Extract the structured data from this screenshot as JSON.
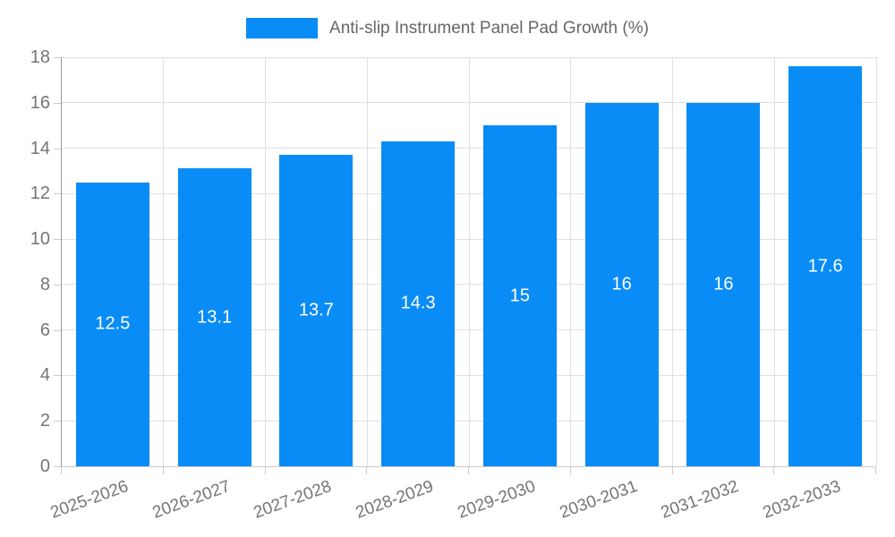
{
  "legend": {
    "label": "Anti-slip Instrument Panel Pad Growth (%)"
  },
  "colors": {
    "bar": "#0a8cf6",
    "grid": "#e0e0e0",
    "axis_y": "#999999",
    "axis_x": "#cccccc",
    "tick_label": "#757575",
    "legend_text": "#666666",
    "value_label": "#ffffff"
  },
  "chart_data": {
    "type": "bar",
    "title": "Anti-slip Instrument Panel Pad Growth (%)",
    "categories": [
      "2025-2026",
      "2026-2027",
      "2027-2028",
      "2028-2029",
      "2029-2030",
      "2030-2031",
      "2031-2032",
      "2032-2033"
    ],
    "values": [
      12.5,
      13.1,
      13.7,
      14.3,
      15,
      16,
      16,
      17.6
    ],
    "xlabel": "",
    "ylabel": "",
    "ylim": [
      0,
      18
    ],
    "ytick_step": 2,
    "yticks": [
      0,
      2,
      4,
      6,
      8,
      10,
      12,
      14,
      16,
      18
    ],
    "grid": true,
    "legend_position": "top-center",
    "value_label_position": "inside-center",
    "x_label_rotation_deg": -20
  }
}
